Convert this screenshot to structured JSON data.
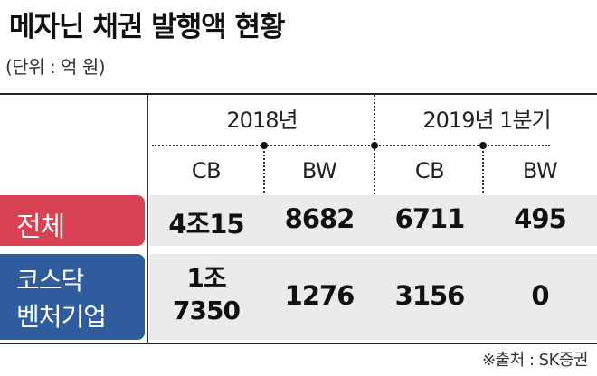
{
  "title": "메자닌 채권 발행액 현황",
  "unit": "(단위 : 억 원)",
  "source": "※출처 : SK증권",
  "colors": {
    "row1_label_bg": "#d94255",
    "row2_label_bg": "#2f5c9c",
    "band_bg": "#ebebeb"
  },
  "chart_data": {
    "type": "table",
    "title": "메자닌 채권 발행액 현황",
    "unit": "(단위 : 억 원)",
    "periods": [
      "2018년",
      "2019년 1분기"
    ],
    "columns": [
      "CB",
      "BW",
      "CB",
      "BW"
    ],
    "rows": [
      {
        "label": "전체",
        "values": [
          "4조15",
          "8682",
          "6711",
          "495"
        ]
      },
      {
        "label_lines": [
          "코스닥",
          "벤처기업"
        ],
        "values": [
          [
            "1조",
            "7350"
          ],
          "1276",
          "3156",
          "0"
        ]
      }
    ]
  }
}
